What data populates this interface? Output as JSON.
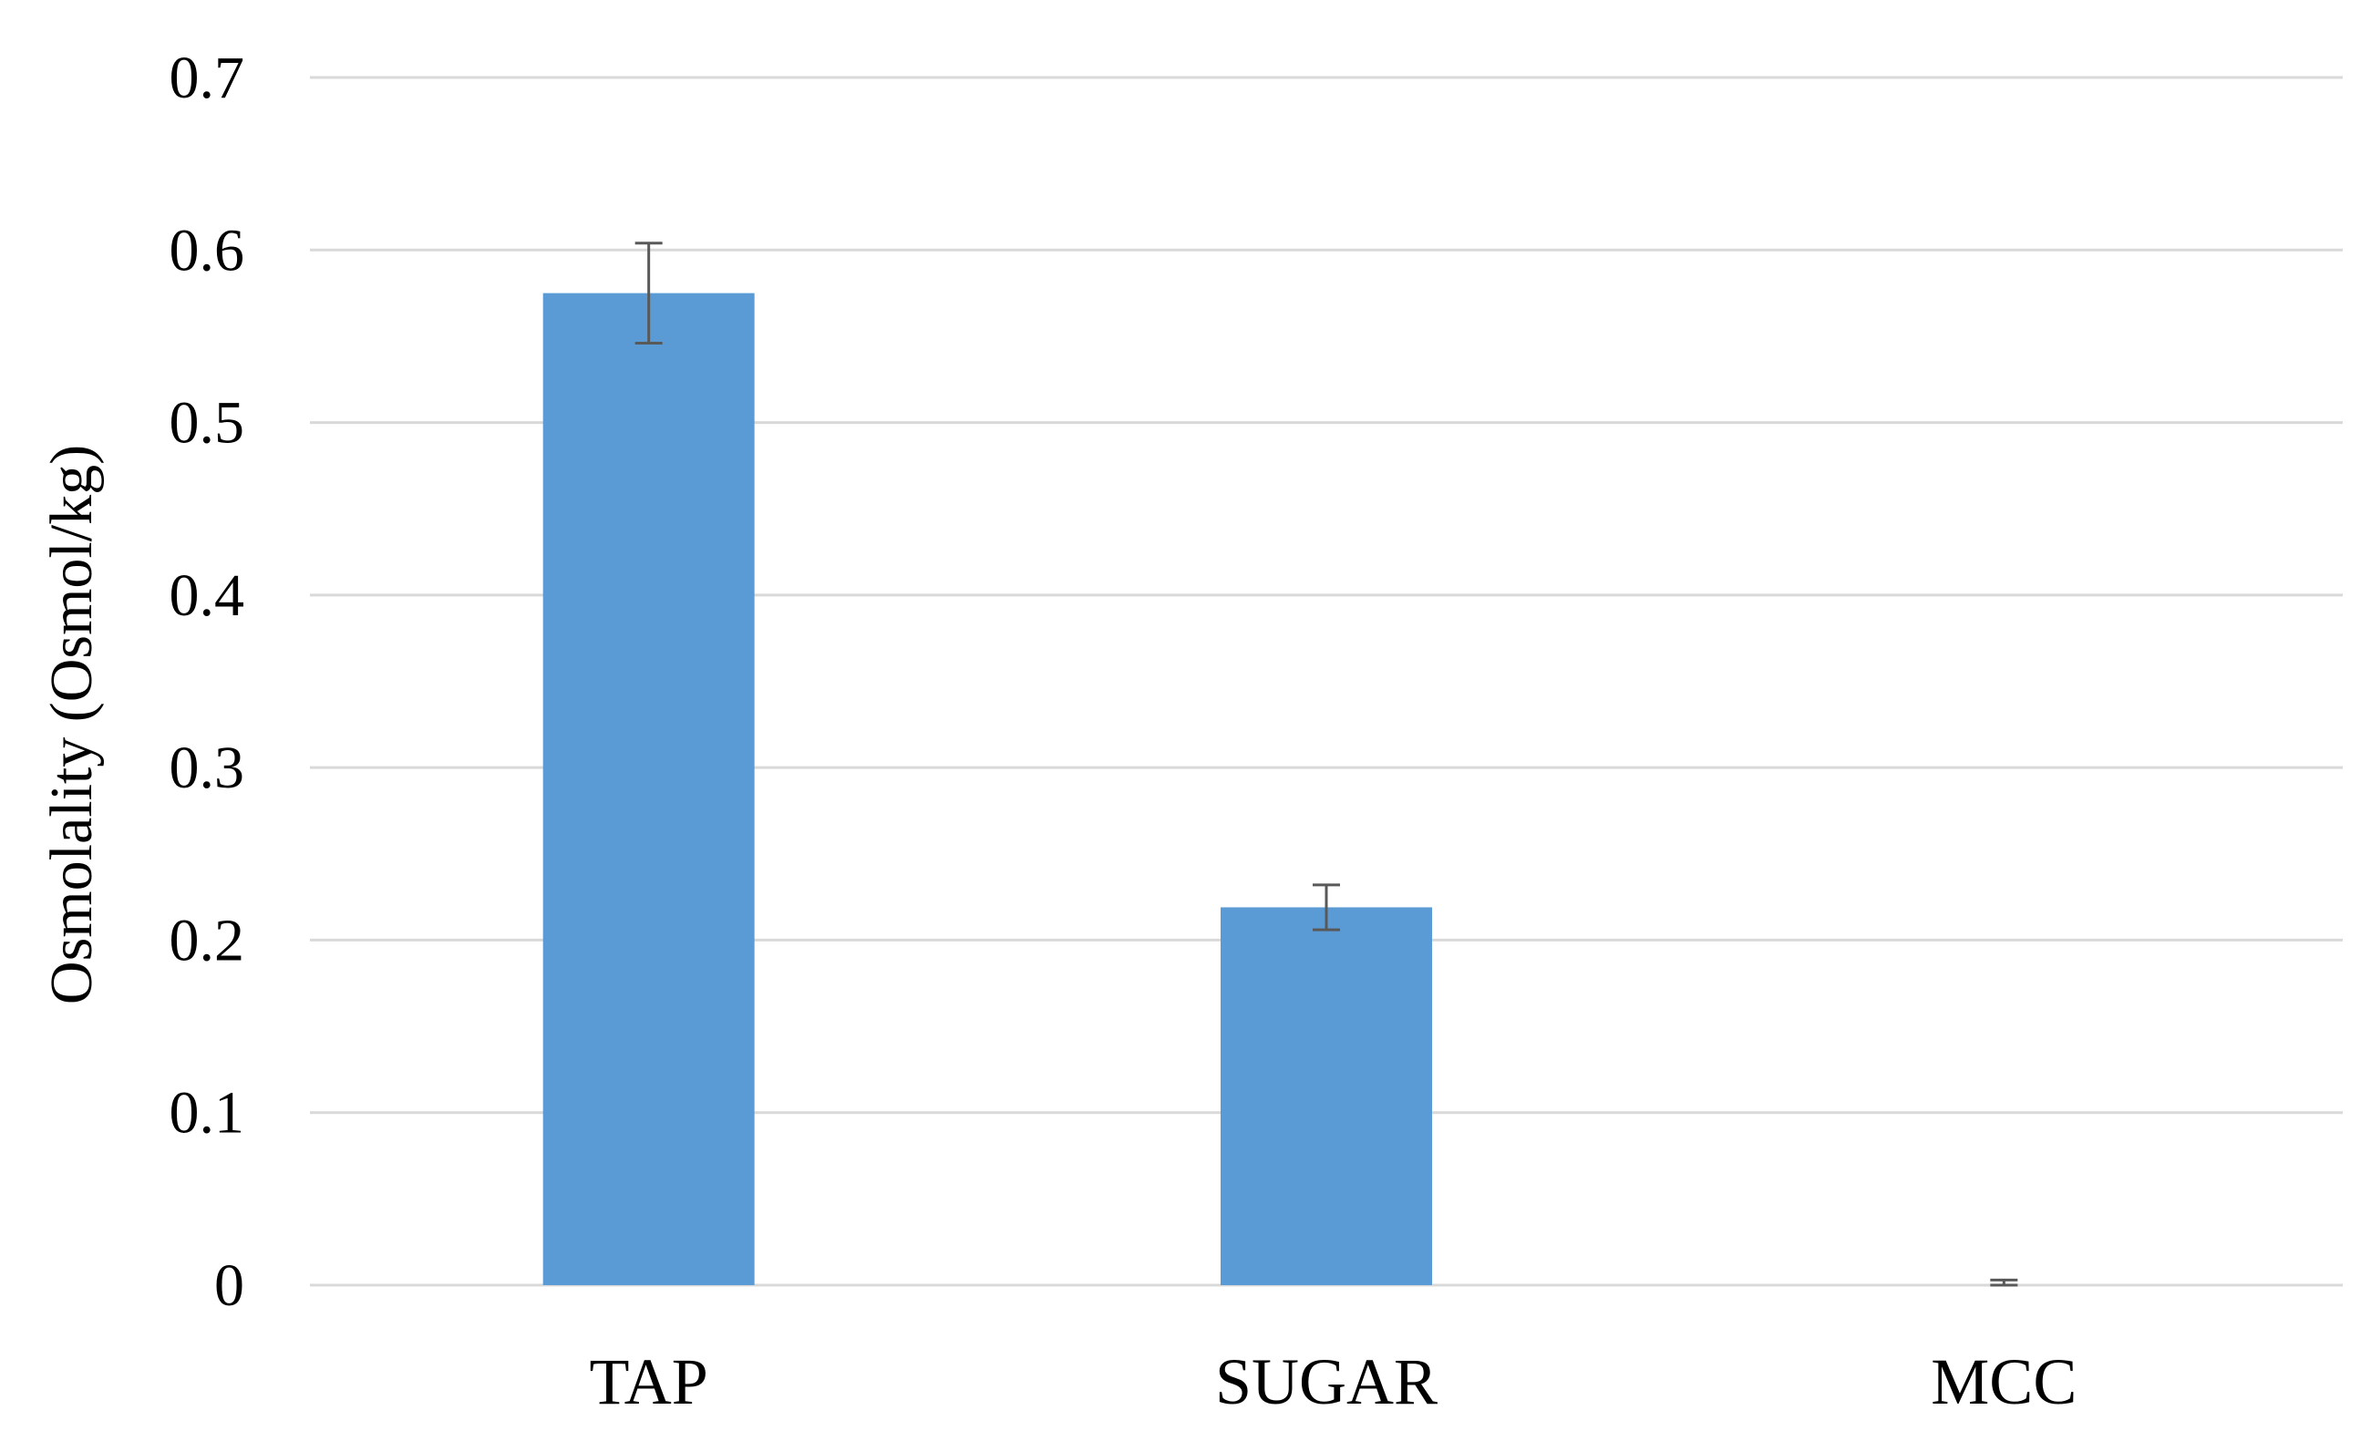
{
  "chart_data": {
    "type": "bar",
    "title": "",
    "xlabel": "",
    "ylabel": "Osmolality (Osmol/kg)",
    "categories": [
      "TAP",
      "SUGAR",
      "MCC"
    ],
    "values": [
      0.575,
      0.219,
      0.001
    ],
    "error": [
      0.029,
      0.013,
      0.002
    ],
    "ylim": [
      0,
      0.7
    ],
    "yticks": [
      0,
      0.1,
      0.2,
      0.3,
      0.4,
      0.5,
      0.6,
      0.7
    ],
    "ytick_labels": [
      "0",
      "0.1",
      "0.2",
      "0.3",
      "0.4",
      "0.5",
      "0.6",
      "0.7"
    ],
    "grid": true,
    "legend": "none",
    "bar_color": "#5b9bd5",
    "error_color": "#595959",
    "grid_color": "#d9d9d9"
  }
}
